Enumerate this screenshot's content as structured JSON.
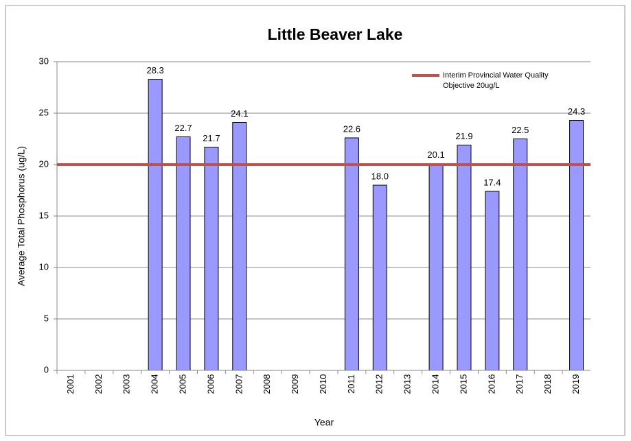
{
  "chart_data": {
    "type": "bar",
    "title": "Little Beaver Lake",
    "x_label": "Year",
    "y_label": "Average Total Phosphorus (ug/L)",
    "categories": [
      "2001",
      "2002",
      "2003",
      "2004",
      "2005",
      "2006",
      "2007",
      "2008",
      "2009",
      "2010",
      "2011",
      "2012",
      "2013",
      "2014",
      "2015",
      "2016",
      "2017",
      "2018",
      "2019"
    ],
    "values": [
      null,
      null,
      null,
      28.3,
      22.7,
      21.7,
      24.1,
      null,
      null,
      null,
      22.6,
      18,
      null,
      20.1,
      21.9,
      17.4,
      22.5,
      null,
      24.3
    ],
    "value_labels": [
      null,
      null,
      null,
      "28.3",
      "22.7",
      "21.7",
      "24.1",
      null,
      null,
      null,
      "22.6",
      "18.0",
      null,
      "20.1",
      "21.9",
      "17.4",
      "22.5",
      null,
      "24.3"
    ],
    "color": "#9999ff",
    "ylim": [
      0,
      30
    ],
    "yticks": [
      0,
      5,
      10,
      15,
      20,
      25,
      30
    ],
    "grid": true,
    "reference_line": {
      "name": [
        "Interim Provincial Water Quality",
        "Objective 20ug/L"
      ],
      "value": 20,
      "color": "#c0504d"
    },
    "legend": "upper right"
  }
}
